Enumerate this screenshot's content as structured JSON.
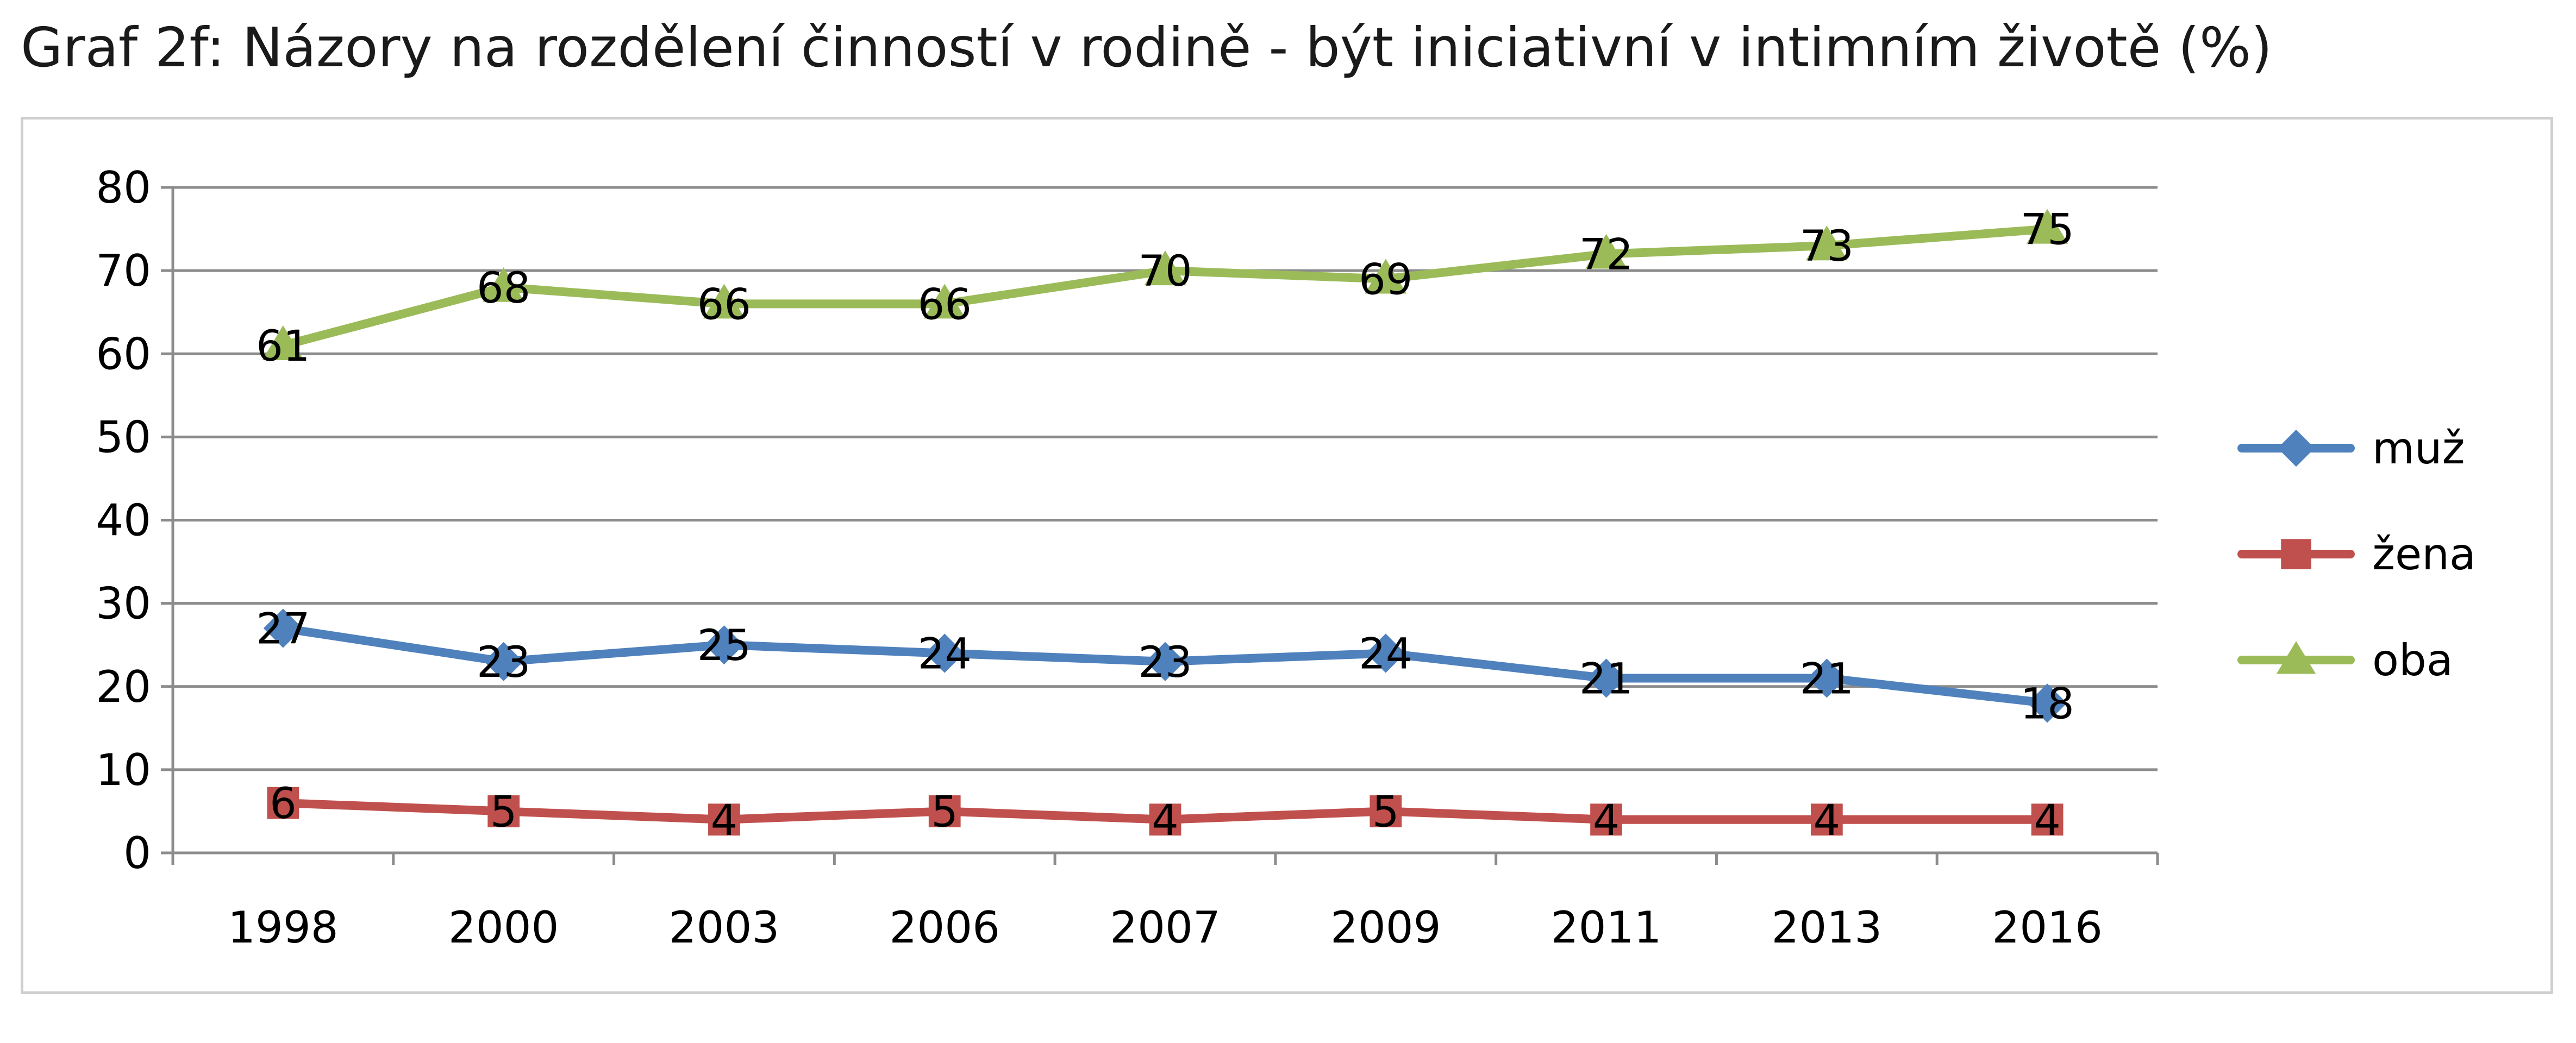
{
  "chart_data": {
    "type": "line",
    "title": "Graf 2f: Názory na rozdělení činností v rodině - být iniciativní v intimním životě (%)",
    "xlabel": "",
    "ylabel": "",
    "categories": [
      "1998",
      "2000",
      "2003",
      "2006",
      "2007",
      "2009",
      "2011",
      "2013",
      "2016"
    ],
    "ylim": [
      0,
      80
    ],
    "yticks": [
      0,
      10,
      20,
      30,
      40,
      50,
      60,
      70,
      80
    ],
    "grid": true,
    "legend_position": "right",
    "series": [
      {
        "name": "muž",
        "color": "#4F81BD",
        "marker": "diamond",
        "values": [
          27,
          23,
          25,
          24,
          23,
          24,
          21,
          21,
          18
        ]
      },
      {
        "name": "žena",
        "color": "#C0504D",
        "marker": "square",
        "values": [
          6,
          5,
          4,
          5,
          4,
          5,
          4,
          4,
          4
        ]
      },
      {
        "name": "oba",
        "color": "#9BBB59",
        "marker": "triangle",
        "values": [
          61,
          68,
          66,
          66,
          70,
          69,
          72,
          73,
          75
        ]
      }
    ]
  }
}
